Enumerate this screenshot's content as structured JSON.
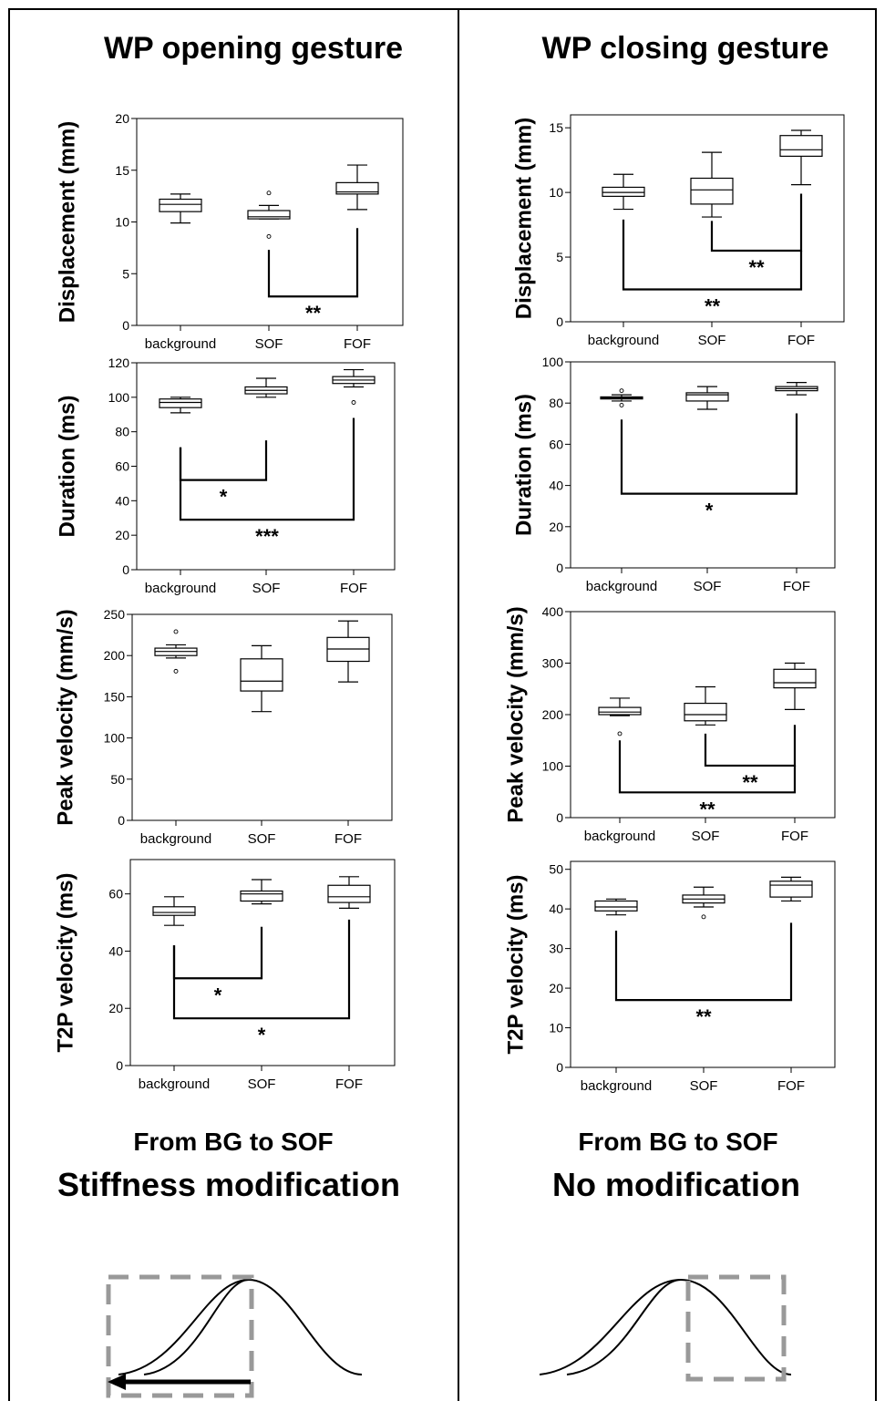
{
  "panels": [
    {
      "title": "WP opening gesture",
      "summary_line1": "From BG to SOF",
      "summary_line2": "Stiffness modification"
    },
    {
      "title": "WP closing gesture",
      "summary_line1": "From BG to SOF",
      "summary_line2": "No modification"
    }
  ],
  "chart_data": [
    {
      "type": "boxplot",
      "panel": "WP opening gesture",
      "ylabel": "Displacement (mm)",
      "ylim": [
        0,
        20
      ],
      "yticks": [
        0,
        5,
        10,
        15,
        20
      ],
      "categories": [
        "background",
        "SOF",
        "FOF"
      ],
      "boxes": [
        {
          "min": 9.9,
          "q1": 11.0,
          "median": 11.7,
          "q3": 12.2,
          "max": 12.7,
          "outliers": []
        },
        {
          "min": 10.3,
          "q1": 10.3,
          "median": 10.5,
          "q3": 11.1,
          "max": 11.6,
          "outliers": [
            12.8,
            8.6
          ]
        },
        {
          "min": 11.2,
          "q1": 12.7,
          "median": 12.9,
          "q3": 13.8,
          "max": 15.5,
          "outliers": []
        }
      ],
      "brackets": [
        {
          "from": "SOF",
          "to": "FOF",
          "label": "**",
          "bar_y": 2.8,
          "left_top": 7.3,
          "right_top": 9.4
        }
      ]
    },
    {
      "type": "boxplot",
      "panel": "WP opening gesture",
      "ylabel": "Duration (ms)",
      "ylim": [
        0,
        120
      ],
      "yticks": [
        0,
        20,
        40,
        60,
        80,
        100,
        120
      ],
      "categories": [
        "background",
        "SOF",
        "FOF"
      ],
      "boxes": [
        {
          "min": 91,
          "q1": 94,
          "median": 97,
          "q3": 99,
          "max": 100,
          "outliers": []
        },
        {
          "min": 100,
          "q1": 102,
          "median": 104,
          "q3": 106,
          "max": 111,
          "outliers": []
        },
        {
          "min": 106,
          "q1": 108,
          "median": 110,
          "q3": 112,
          "max": 116,
          "outliers": [
            97
          ]
        }
      ],
      "brackets": [
        {
          "from": "background",
          "to": "SOF",
          "label": "*",
          "bar_y": 52,
          "left_top": 71,
          "right_top": 75
        },
        {
          "from": "background",
          "to": "FOF",
          "label": "***",
          "bar_y": 29,
          "left_top": 71,
          "right_top": 88
        }
      ]
    },
    {
      "type": "boxplot",
      "panel": "WP opening gesture",
      "ylabel": "Peak velocity (mm/s)",
      "ylim": [
        0,
        250
      ],
      "yticks": [
        0,
        50,
        100,
        150,
        200,
        250
      ],
      "categories": [
        "background",
        "SOF",
        "FOF"
      ],
      "boxes": [
        {
          "min": 197,
          "q1": 200,
          "median": 205,
          "q3": 209,
          "max": 213,
          "outliers": [
            229,
            181
          ]
        },
        {
          "min": 132,
          "q1": 157,
          "median": 169,
          "q3": 196,
          "max": 212,
          "outliers": []
        },
        {
          "min": 168,
          "q1": 193,
          "median": 208,
          "q3": 222,
          "max": 242,
          "outliers": []
        }
      ],
      "brackets": []
    },
    {
      "type": "boxplot",
      "panel": "WP opening gesture",
      "ylabel": "T2P velocity (ms)",
      "ylim": [
        0,
        72
      ],
      "yticks": [
        0,
        20,
        40,
        60
      ],
      "categories": [
        "background",
        "SOF",
        "FOF"
      ],
      "boxes": [
        {
          "min": 49,
          "q1": 52.5,
          "median": 53.5,
          "q3": 55.5,
          "max": 59,
          "outliers": []
        },
        {
          "min": 56.5,
          "q1": 57.5,
          "median": 60,
          "q3": 61,
          "max": 65,
          "outliers": []
        },
        {
          "min": 55,
          "q1": 57,
          "median": 59,
          "q3": 63,
          "max": 66,
          "outliers": []
        }
      ],
      "brackets": [
        {
          "from": "background",
          "to": "SOF",
          "label": "*",
          "bar_y": 30.5,
          "left_top": 42,
          "right_top": 48.5
        },
        {
          "from": "background",
          "to": "FOF",
          "label": "*",
          "bar_y": 16.5,
          "left_top": 42,
          "right_top": 51
        }
      ]
    },
    {
      "type": "boxplot",
      "panel": "WP closing gesture",
      "ylabel": "Displacement (mm)",
      "ylim": [
        0,
        16
      ],
      "yticks": [
        0,
        5,
        10,
        15
      ],
      "categories": [
        "background",
        "SOF",
        "FOF"
      ],
      "boxes": [
        {
          "min": 8.7,
          "q1": 9.7,
          "median": 10.0,
          "q3": 10.4,
          "max": 11.4,
          "outliers": []
        },
        {
          "min": 8.1,
          "q1": 9.1,
          "median": 10.2,
          "q3": 11.1,
          "max": 13.1,
          "outliers": []
        },
        {
          "min": 10.6,
          "q1": 12.8,
          "median": 13.3,
          "q3": 14.4,
          "max": 14.8,
          "outliers": []
        }
      ],
      "brackets": [
        {
          "from": "SOF",
          "to": "FOF",
          "label": "**",
          "bar_y": 5.5,
          "left_top": 7.8,
          "right_top": 9.9
        },
        {
          "from": "background",
          "to": "FOF",
          "label": "**",
          "bar_y": 2.5,
          "left_top": 7.9,
          "right_top": 5.5
        }
      ]
    },
    {
      "type": "boxplot",
      "panel": "WP closing gesture",
      "ylabel": "Duration (ms)",
      "ylim": [
        0,
        100
      ],
      "yticks": [
        0,
        20,
        40,
        60,
        80,
        100
      ],
      "categories": [
        "background",
        "SOF",
        "FOF"
      ],
      "boxes": [
        {
          "min": 81,
          "q1": 82,
          "median": 82.5,
          "q3": 83,
          "max": 84,
          "outliers": [
            86,
            79
          ]
        },
        {
          "min": 77,
          "q1": 81,
          "median": 84,
          "q3": 85,
          "max": 88,
          "outliers": []
        },
        {
          "min": 84,
          "q1": 86,
          "median": 87,
          "q3": 88,
          "max": 90,
          "outliers": []
        }
      ],
      "brackets": [
        {
          "from": "background",
          "to": "FOF",
          "label": "*",
          "bar_y": 36,
          "left_top": 72,
          "right_top": 75
        }
      ]
    },
    {
      "type": "boxplot",
      "panel": "WP closing gesture",
      "ylabel": "Peak velocity (mm/s)",
      "ylim": [
        0,
        400
      ],
      "yticks": [
        0,
        100,
        200,
        300,
        400
      ],
      "categories": [
        "background",
        "SOF",
        "FOF"
      ],
      "boxes": [
        {
          "min": 198,
          "q1": 200,
          "median": 205,
          "q3": 214,
          "max": 232,
          "outliers": [
            163
          ]
        },
        {
          "min": 180,
          "q1": 188,
          "median": 200,
          "q3": 222,
          "max": 254,
          "outliers": []
        },
        {
          "min": 210,
          "q1": 252,
          "median": 262,
          "q3": 288,
          "max": 300,
          "outliers": []
        }
      ],
      "brackets": [
        {
          "from": "SOF",
          "to": "FOF",
          "label": "**",
          "bar_y": 101,
          "left_top": 163,
          "right_top": 180
        },
        {
          "from": "background",
          "to": "FOF",
          "label": "**",
          "bar_y": 49,
          "left_top": 150,
          "right_top": 101
        }
      ]
    },
    {
      "type": "boxplot",
      "panel": "WP closing gesture",
      "ylabel": "T2P velocity (ms)",
      "ylim": [
        0,
        52
      ],
      "yticks": [
        0,
        10,
        20,
        30,
        40,
        50
      ],
      "categories": [
        "background",
        "SOF",
        "FOF"
      ],
      "boxes": [
        {
          "min": 38.5,
          "q1": 39.5,
          "median": 40.5,
          "q3": 42,
          "max": 42.5,
          "outliers": []
        },
        {
          "min": 40.5,
          "q1": 41.5,
          "median": 42.5,
          "q3": 43.5,
          "max": 45.5,
          "outliers": [
            38
          ]
        },
        {
          "min": 42,
          "q1": 43,
          "median": 46,
          "q3": 47,
          "max": 48,
          "outliers": []
        }
      ],
      "brackets": [
        {
          "from": "background",
          "to": "FOF",
          "label": "**",
          "bar_y": 17,
          "left_top": 34.5,
          "right_top": 36.5
        }
      ]
    }
  ]
}
